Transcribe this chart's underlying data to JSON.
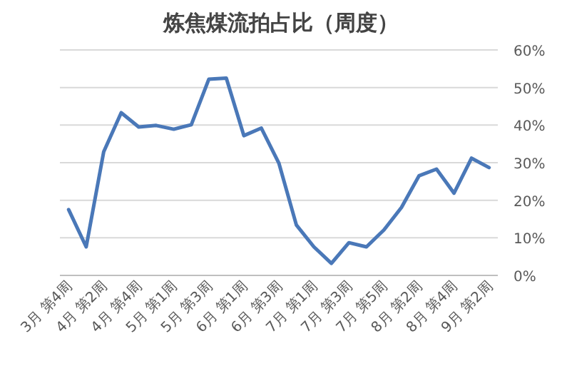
{
  "chart_data": {
    "type": "line",
    "title": "炼焦煤流拍占比（周度）",
    "categories": [
      "3月 第4周",
      null,
      "4月 第2周",
      null,
      "4月 第4周",
      null,
      "5月 第1周",
      null,
      "5月 第3周",
      null,
      "6月 第1周",
      null,
      "6月 第3周",
      null,
      "7月 第1周",
      null,
      "7月 第3周",
      null,
      "7月 第5周",
      null,
      "8月 第2周",
      null,
      "8月 第4周",
      null,
      "9月 第2周"
    ],
    "values": [
      17.5,
      7.6,
      32.9,
      43.3,
      39.5,
      39.9,
      38.9,
      40.1,
      52.2,
      52.5,
      37.2,
      39.2,
      29.9,
      13.4,
      7.6,
      3.2,
      8.7,
      7.6,
      12.1,
      18.1,
      26.5,
      28.3,
      21.9,
      31.2,
      28.7
    ],
    "color": "#4a78b8",
    "ylim": [
      0,
      60
    ],
    "yticks": [
      {
        "value": 0,
        "label": "0%"
      },
      {
        "value": 10,
        "label": "10%"
      },
      {
        "value": 20,
        "label": "20%"
      },
      {
        "value": 30,
        "label": "30%"
      },
      {
        "value": 40,
        "label": "40%"
      },
      {
        "value": 50,
        "label": "50%"
      },
      {
        "value": 60,
        "label": "60%"
      }
    ],
    "grid": "y"
  }
}
